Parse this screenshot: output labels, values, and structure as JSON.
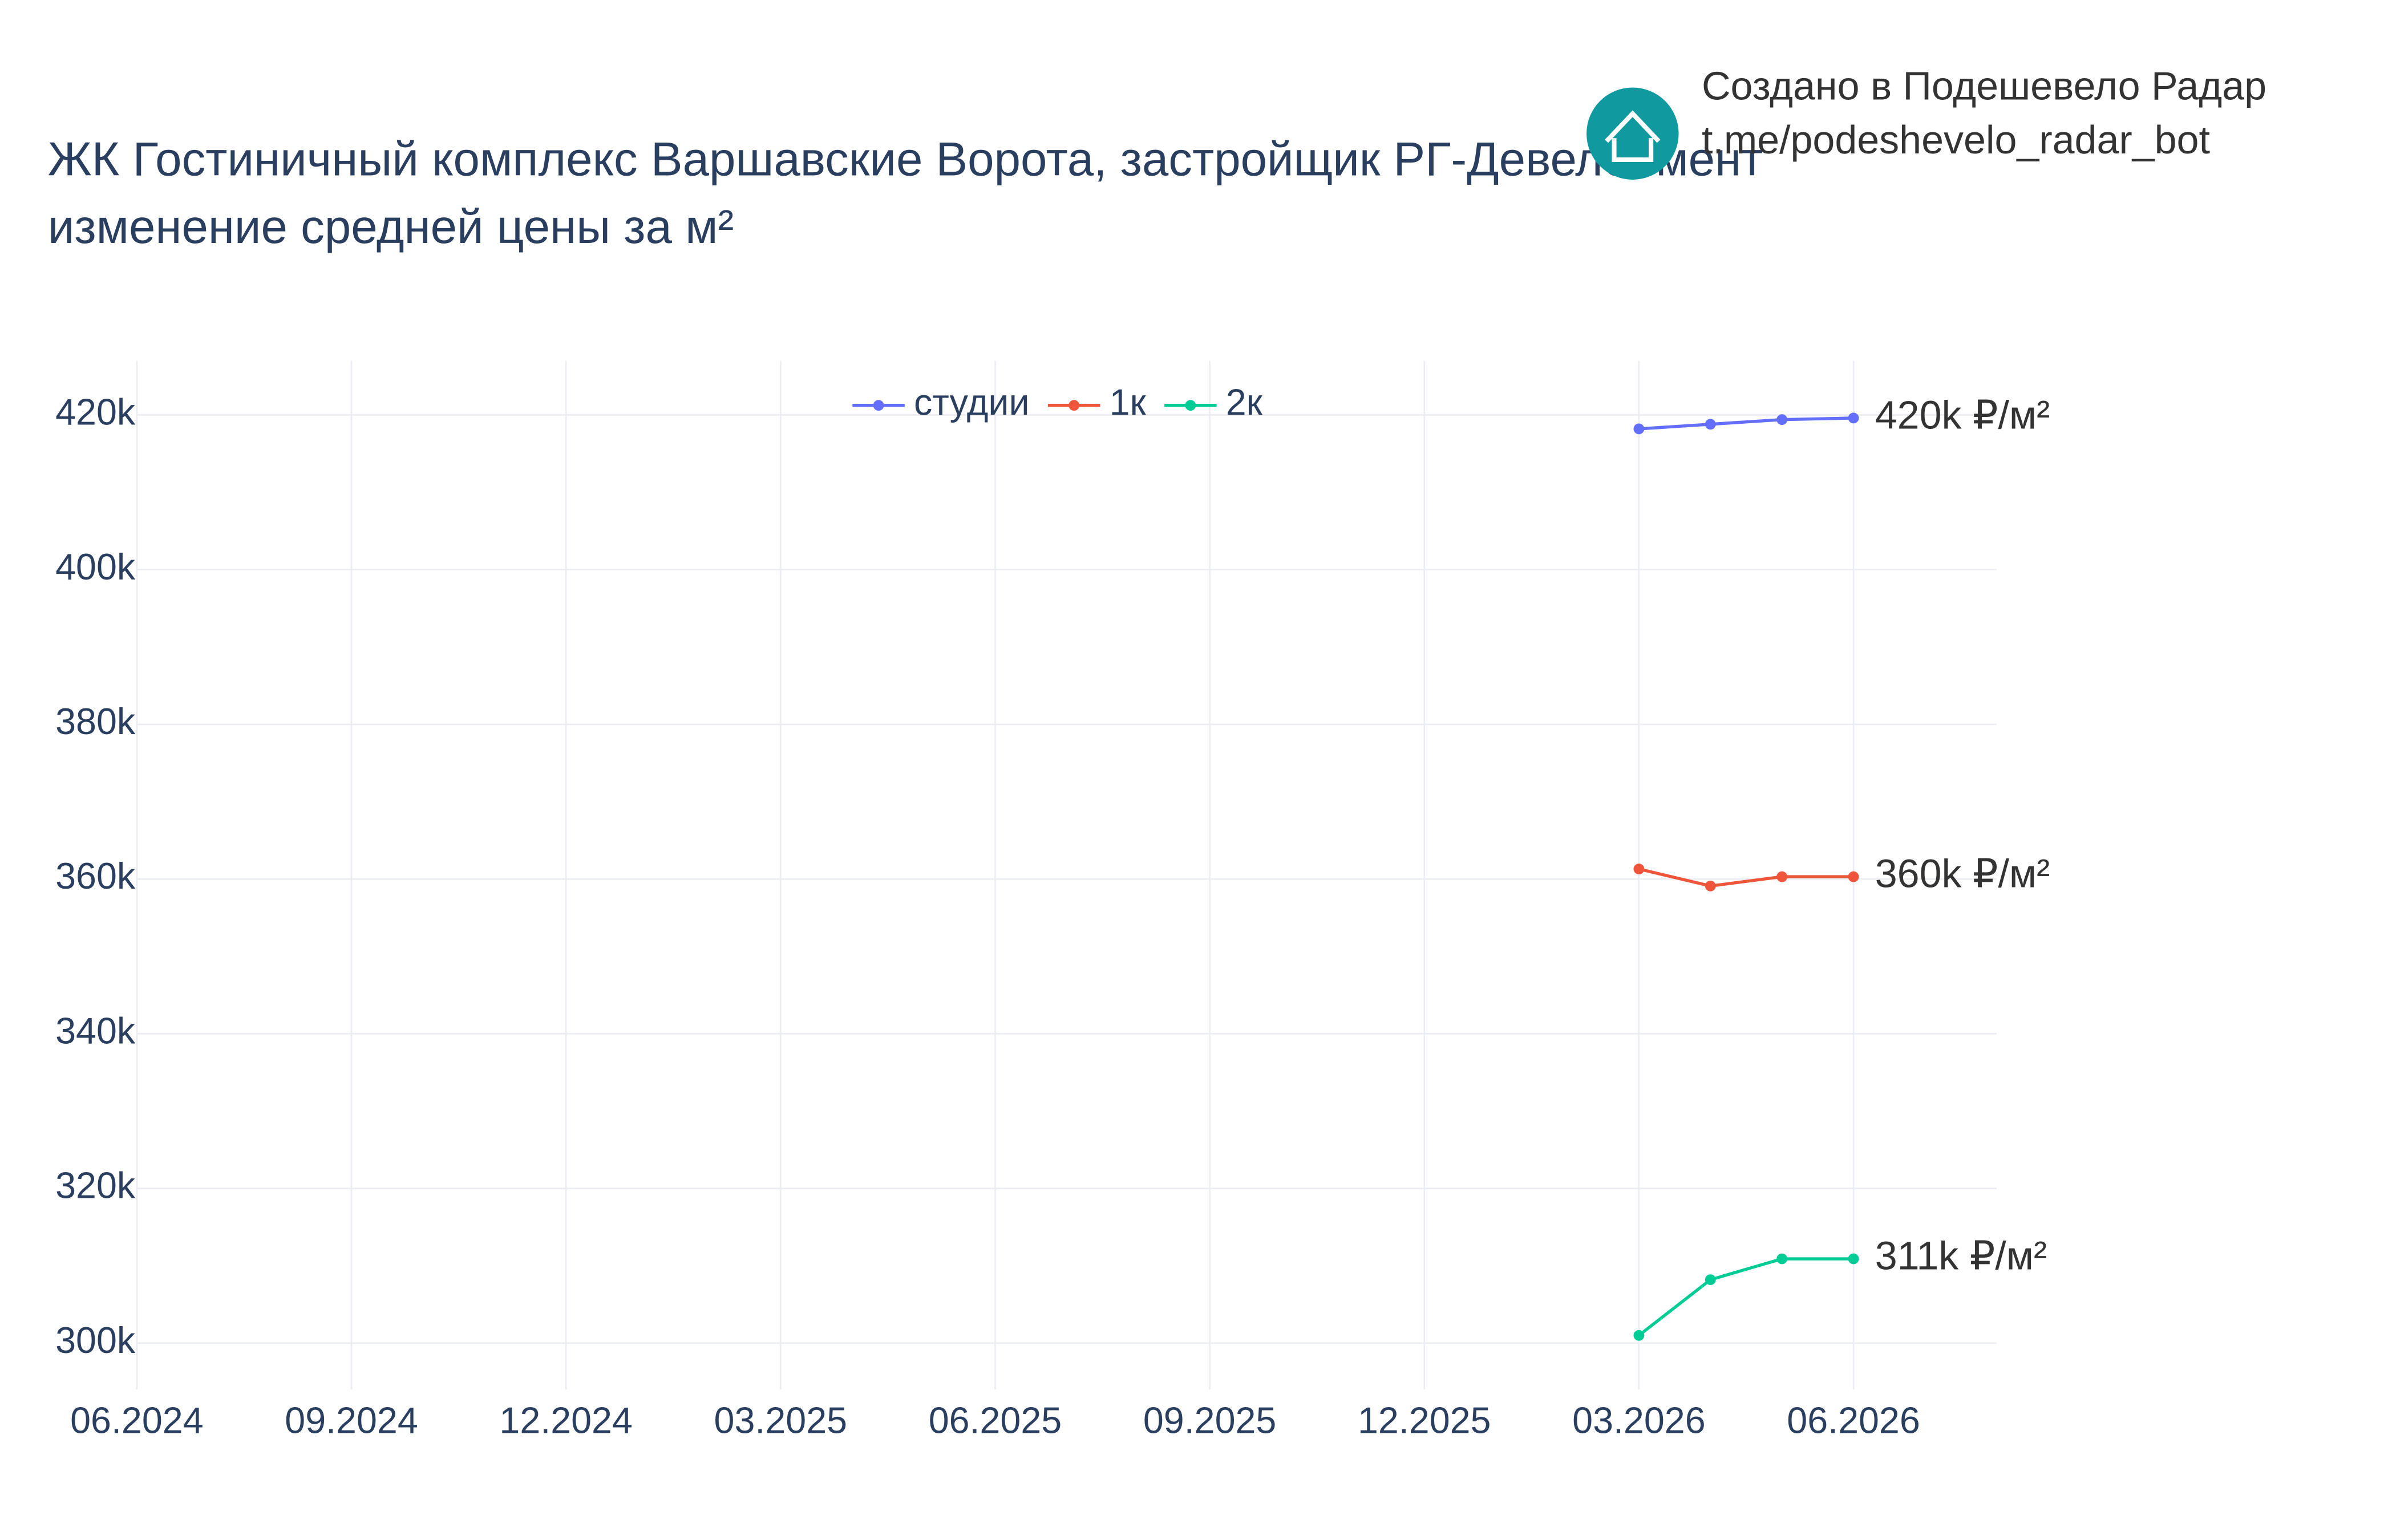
{
  "chart_data": {
    "type": "line",
    "title": "ЖК Гостиничный комплекс Варшавские Ворота, застройщик РГ-Девелопмент",
    "subtitle": "изменение средней цены за м²",
    "annotations": [
      "Создано в Подешевело Радар",
      "t.me/podeshevelo_radar_bot"
    ],
    "x": [
      "03.2026",
      "04.2026",
      "05.2026",
      "06.2026"
    ],
    "xlim": [
      "06.2024",
      "08.2026"
    ],
    "xticks": [
      "06.2024",
      "09.2024",
      "12.2024",
      "03.2025",
      "06.2025",
      "09.2025",
      "12.2025",
      "03.2026",
      "06.2026"
    ],
    "ylim": [
      294000,
      427000
    ],
    "yticks": [
      {
        "value": 300000,
        "label": "300k"
      },
      {
        "value": 320000,
        "label": "320k"
      },
      {
        "value": 340000,
        "label": "340k"
      },
      {
        "value": 360000,
        "label": "360k"
      },
      {
        "value": 380000,
        "label": "380k"
      },
      {
        "value": 400000,
        "label": "400k"
      },
      {
        "value": 420000,
        "label": "420k"
      }
    ],
    "grid": true,
    "legend": "top",
    "series": [
      {
        "name": "студии",
        "color": "#636efa",
        "values": [
          418200,
          418800,
          419400,
          419600
        ],
        "value_labels": [
          null,
          null,
          null,
          "420k ₽/м²"
        ]
      },
      {
        "name": "1к",
        "color": "#ef553b",
        "values": [
          361300,
          359100,
          360300,
          360300
        ],
        "value_labels": [
          null,
          null,
          null,
          "360k ₽/м²"
        ]
      },
      {
        "name": "2к",
        "color": "#00cc96",
        "values": [
          301000,
          308200,
          310900,
          310900
        ],
        "value_labels": [
          null,
          null,
          null,
          "311k ₽/м²"
        ]
      }
    ]
  }
}
